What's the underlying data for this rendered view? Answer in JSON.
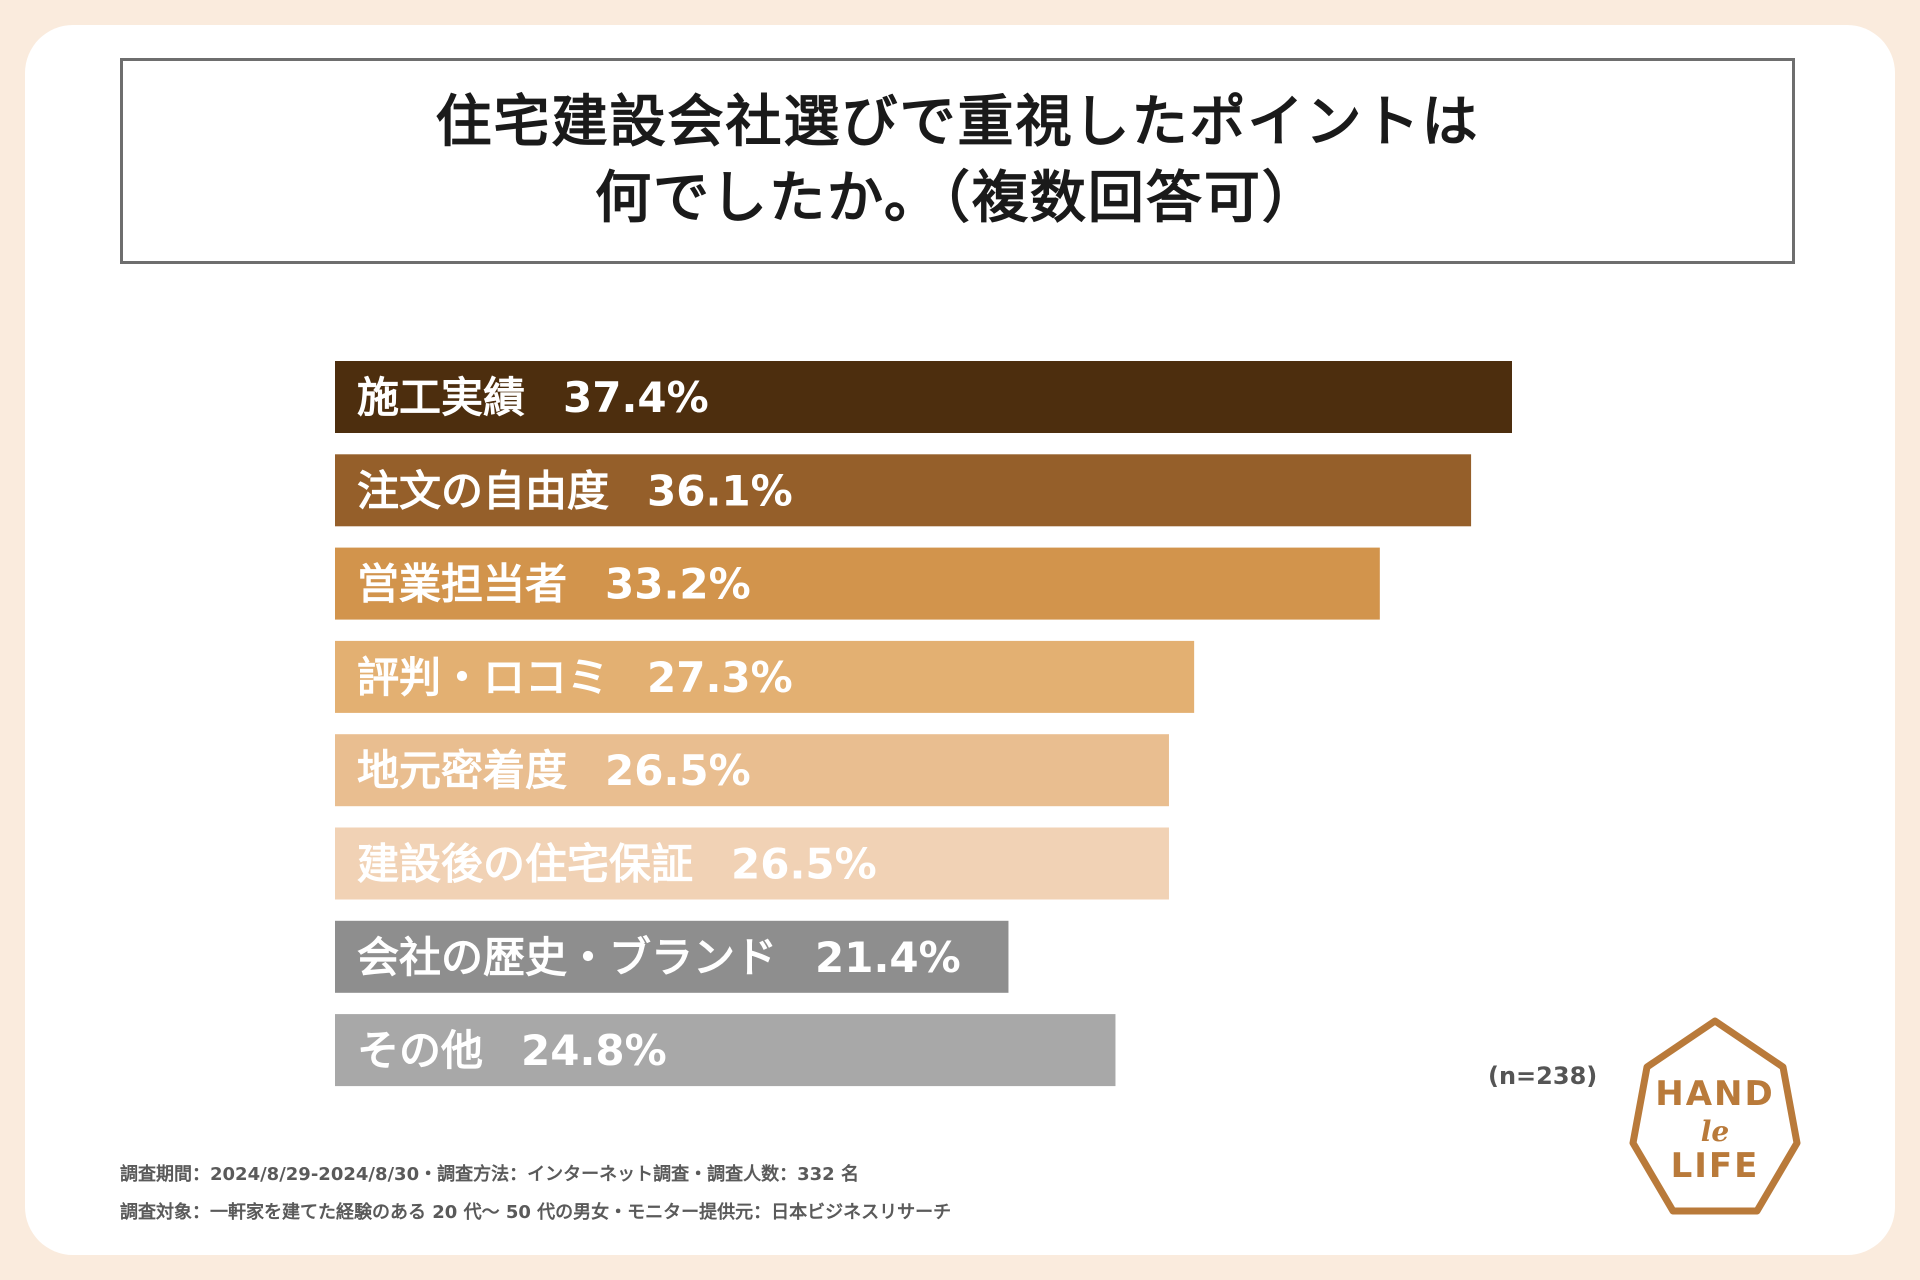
{
  "title": {
    "line1": "住宅建設会社選びで重視したポイントは",
    "line2": "何でしたか。（複数回答可）"
  },
  "chart_data": {
    "type": "bar",
    "orientation": "horizontal",
    "title": "住宅建設会社選びで重視したポイントは何でしたか。（複数回答可）",
    "unit": "%",
    "categories": [
      "施工実績",
      "注文の自由度",
      "営業担当者",
      "評判・ロコミ",
      "地元密着度",
      "建設後の住宅保証",
      "会社の歴史・ブランド",
      "その他"
    ],
    "values": [
      37.4,
      36.1,
      33.2,
      27.3,
      26.5,
      26.5,
      21.4,
      24.8
    ],
    "value_labels": [
      "37.4%",
      "36.1%",
      "33.2%",
      "27.3%",
      "26.5%",
      "26.5%",
      "21.4%",
      "24.8%"
    ],
    "colors": [
      "#4D2E0E",
      "#955F2A",
      "#D2944C",
      "#E3B072",
      "#E9BE90",
      "#F1D2B5",
      "#8E8E8E",
      "#A8A8A8"
    ],
    "xlim": [
      0,
      37.4
    ]
  },
  "sample_size": "(n=238)",
  "footnotes": {
    "line1": "調査期間：2024/8/29-2024/8/30・調査方法：インターネット調査・調査人数：332 名",
    "line2": "調査対象：一軒家を建てた経験のある 20 代〜 50 代の男女・モニター提供元：日本ビジネスリサーチ"
  },
  "logo": {
    "line1": "HAND",
    "line2": "le",
    "line3": "LIFE",
    "color": "#B97A3A"
  }
}
